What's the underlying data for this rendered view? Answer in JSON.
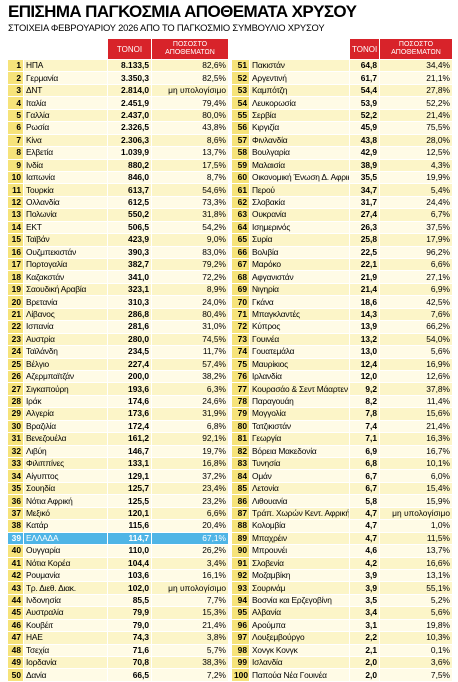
{
  "title": "ΕΠΙΣΗΜΑ ΠΑΓΚΟΣΜΙΑ ΑΠΟΘΕΜΑΤΑ ΧΡΥΣΟΥ",
  "subtitle": "ΣΤΟΙΧΕΙΑ ΦΕΒΡΟΥΑΡΙΟΥ 2026 ΑΠΟ ΤΟ ΠΑΓΚΟΣΜΙΟ ΣΥΜΒΟΥΛΙΟ ΧΡΥΣΟΥ",
  "headers": {
    "tonnes": "ΤΟΝΟΙ",
    "share": [
      "ΠΟΣΟΣΤΟ",
      "ΑΠΟΘΕΜΑΤΩΝ"
    ]
  },
  "table": {
    "rows": [
      [
        "1",
        "ΗΠΑ",
        "8.133,5",
        "82,6%"
      ],
      [
        "2",
        "Γερμανία",
        "3.350,3",
        "82,5%"
      ],
      [
        "3",
        "ΔΝΤ",
        "2.814,0",
        "μη υπολογίσιμο"
      ],
      [
        "4",
        "Ιταλία",
        "2.451,9",
        "79,4%"
      ],
      [
        "5",
        "Γαλλία",
        "2.437,0",
        "80,0%"
      ],
      [
        "6",
        "Ρωσία",
        "2.326,5",
        "43,8%"
      ],
      [
        "7",
        "Κίνα",
        "2.306,3",
        "8,6%"
      ],
      [
        "8",
        "Ελβετία",
        "1.039,9",
        "13,7%"
      ],
      [
        "9",
        "Ινδία",
        "880,2",
        "17,5%"
      ],
      [
        "10",
        "Ιαπωνία",
        "846,0",
        "8,7%"
      ],
      [
        "11",
        "Τουρκία",
        "613,7",
        "54,6%"
      ],
      [
        "12",
        "Ολλανδία",
        "612,5",
        "73,3%"
      ],
      [
        "13",
        "Πολωνία",
        "550,2",
        "31,8%"
      ],
      [
        "14",
        "ΕΚΤ",
        "506,5",
        "54,2%"
      ],
      [
        "15",
        "Ταϊβάν",
        "423,9",
        "9,0%"
      ],
      [
        "16",
        "Ουζμπεκιστάν",
        "390,3",
        "83,0%"
      ],
      [
        "17",
        "Πορτογαλία",
        "382,7",
        "79,2%"
      ],
      [
        "18",
        "Καζακστάν",
        "341,0",
        "72,2%"
      ],
      [
        "19",
        "Σαουδική Αραβία",
        "323,1",
        "8,9%"
      ],
      [
        "20",
        "Βρετανία",
        "310,3",
        "24,0%"
      ],
      [
        "21",
        "Λίβανος",
        "286,8",
        "80,4%"
      ],
      [
        "22",
        "Ισπανία",
        "281,6",
        "31,0%"
      ],
      [
        "23",
        "Αυστρία",
        "280,0",
        "74,5%"
      ],
      [
        "24",
        "Ταϊλάνδη",
        "234,5",
        "11,7%"
      ],
      [
        "25",
        "Βέλγιο",
        "227,4",
        "57,4%"
      ],
      [
        "26",
        "Αζερμπαϊτζάν",
        "200,0",
        "38,2%"
      ],
      [
        "27",
        "Σιγκαπούρη",
        "193,6",
        "6,3%"
      ],
      [
        "28",
        "Ιράκ",
        "174,6",
        "24,6%"
      ],
      [
        "29",
        "Αλγερία",
        "173,6",
        "31,9%"
      ],
      [
        "30",
        "Βραζιλία",
        "172,4",
        "6,8%"
      ],
      [
        "31",
        "Βενεζουέλα",
        "161,2",
        "92,1%"
      ],
      [
        "32",
        "Λιβύη",
        "146,7",
        "19,7%"
      ],
      [
        "33",
        "Φιλιππίνες",
        "133,1",
        "16,8%"
      ],
      [
        "34",
        "Αίγυπτος",
        "129,1",
        "37,2%"
      ],
      [
        "35",
        "Σουηδία",
        "125,7",
        "23,4%"
      ],
      [
        "36",
        "Νότια Αφρική",
        "125,5",
        "23,2%"
      ],
      [
        "37",
        "Μεξικό",
        "120,1",
        "6,6%"
      ],
      [
        "38",
        "Κατάρ",
        "115,6",
        "20,4%"
      ],
      [
        "39",
        "ΕΛΛΑΔΑ",
        "114,7",
        "67,1%"
      ],
      [
        "40",
        "Ουγγαρία",
        "110,0",
        "26,2%"
      ],
      [
        "41",
        "Νότια Κορέα",
        "104,4",
        "3,4%"
      ],
      [
        "42",
        "Ρουμανία",
        "103,6",
        "16,1%"
      ],
      [
        "43",
        "Τρ. Διεθ. Διακ.",
        "102,0",
        "μη υπολογίσιμο"
      ],
      [
        "44",
        "Ινδονησία",
        "85,5",
        "7,7%"
      ],
      [
        "45",
        "Αυστραλία",
        "79,9",
        "15,3%"
      ],
      [
        "46",
        "Κουβέιτ",
        "79,0",
        "21,4%"
      ],
      [
        "47",
        "ΗΑΕ",
        "74,3",
        "3,8%"
      ],
      [
        "48",
        "Τσεχία",
        "71,6",
        "5,7%"
      ],
      [
        "49",
        "Ιορδανία",
        "70,8",
        "38,3%"
      ],
      [
        "50",
        "Δανία",
        "66,5",
        "7,2%"
      ],
      [
        "51",
        "Πακιστάν",
        "64,8",
        "34,4%"
      ],
      [
        "52",
        "Αργεντινή",
        "61,7",
        "21,1%"
      ],
      [
        "53",
        "Καμπότζη",
        "54,4",
        "27,8%"
      ],
      [
        "54",
        "Λευκορωσία",
        "53,9",
        "52,2%"
      ],
      [
        "55",
        "Σερβία",
        "52,2",
        "21,4%"
      ],
      [
        "56",
        "Κιργιζία",
        "45,9",
        "75,5%"
      ],
      [
        "57",
        "Φινλανδία",
        "43,8",
        "28,0%"
      ],
      [
        "58",
        "Βουλγαρία",
        "42,9",
        "12,5%"
      ],
      [
        "59",
        "Μαλαισία",
        "38,9",
        "4,3%"
      ],
      [
        "60",
        "Οικονομική Ένωση Δ. Αφρικής",
        "35,5",
        "19,9%"
      ],
      [
        "61",
        "Περού",
        "34,7",
        "5,4%"
      ],
      [
        "62",
        "Σλοβακία",
        "31,7",
        "24,4%"
      ],
      [
        "63",
        "Ουκρανία",
        "27,4",
        "6,7%"
      ],
      [
        "64",
        "Ισημερινός",
        "26,3",
        "37,5%"
      ],
      [
        "65",
        "Συρία",
        "25,8",
        "17,9%"
      ],
      [
        "66",
        "Βολιβία",
        "22,5",
        "96,2%"
      ],
      [
        "67",
        "Μαρόκο",
        "22,1",
        "6,6%"
      ],
      [
        "68",
        "Αφγανιστάν",
        "21,9",
        "27,1%"
      ],
      [
        "69",
        "Νιγηρία",
        "21,4",
        "6,9%"
      ],
      [
        "70",
        "Γκάνα",
        "18,6",
        "42,5%"
      ],
      [
        "71",
        "Μπαγκλαντές",
        "14,3",
        "7,6%"
      ],
      [
        "72",
        "Κύπρος",
        "13,9",
        "66,2%"
      ],
      [
        "73",
        "Γουινέα",
        "13,2",
        "54,0%"
      ],
      [
        "74",
        "Γουατεμάλα",
        "13,0",
        "5,6%"
      ],
      [
        "75",
        "Μαυρίκιος",
        "12,4",
        "16,9%"
      ],
      [
        "76",
        "Ιρλανδία",
        "12,0",
        "12,6%"
      ],
      [
        "77",
        "Κουρασάο & Σεντ Μάαρτεν",
        "9,2",
        "37,8%"
      ],
      [
        "78",
        "Παραγουάη",
        "8,2",
        "11,4%"
      ],
      [
        "79",
        "Μογγολία",
        "7,8",
        "15,6%"
      ],
      [
        "80",
        "Τατζικιστάν",
        "7,4",
        "21,4%"
      ],
      [
        "81",
        "Γεωργία",
        "7,1",
        "16,3%"
      ],
      [
        "82",
        "Βόρεια Μακεδονία",
        "6,9",
        "16,7%"
      ],
      [
        "83",
        "Τυνησία",
        "6,8",
        "10,1%"
      ],
      [
        "84",
        "Ομάν",
        "6,7",
        "6,0%"
      ],
      [
        "85",
        "Λετονία",
        "6,7",
        "15,4%"
      ],
      [
        "86",
        "Λιθουανία",
        "5,8",
        "15,9%"
      ],
      [
        "87",
        "Τράπ. Χωρών Κεντ. Αφρικής",
        "4,7",
        "μη υπολογίσιμο"
      ],
      [
        "88",
        "Κολομβία",
        "4,7",
        "1,0%"
      ],
      [
        "89",
        "Μπαχρέιν",
        "4,7",
        "11,5%"
      ],
      [
        "90",
        "Μπρουνέι",
        "4,6",
        "13,7%"
      ],
      [
        "91",
        "Σλοβενία",
        "4,2",
        "16,6%"
      ],
      [
        "92",
        "Μοζαμβίκη",
        "3,9",
        "13,1%"
      ],
      [
        "93",
        "Σουρινάμ",
        "3,9",
        "55,1%"
      ],
      [
        "94",
        "Βοσνία και Ερζεγοβίνη",
        "3,5",
        "5,2%"
      ],
      [
        "95",
        "Αλβανία",
        "3,4",
        "5,6%"
      ],
      [
        "96",
        "Αρούμπα",
        "3,1",
        "19,8%"
      ],
      [
        "97",
        "Λουξεμβούργο",
        "2,2",
        "10,3%"
      ],
      [
        "98",
        "Χονγκ Κονγκ",
        "2,1",
        "0,1%"
      ],
      [
        "99",
        "Ισλανδία",
        "2,0",
        "3,6%"
      ],
      [
        "100",
        "Παπούα Νέα Γουινέα",
        "2,0",
        "7,5%"
      ]
    ]
  }
}
